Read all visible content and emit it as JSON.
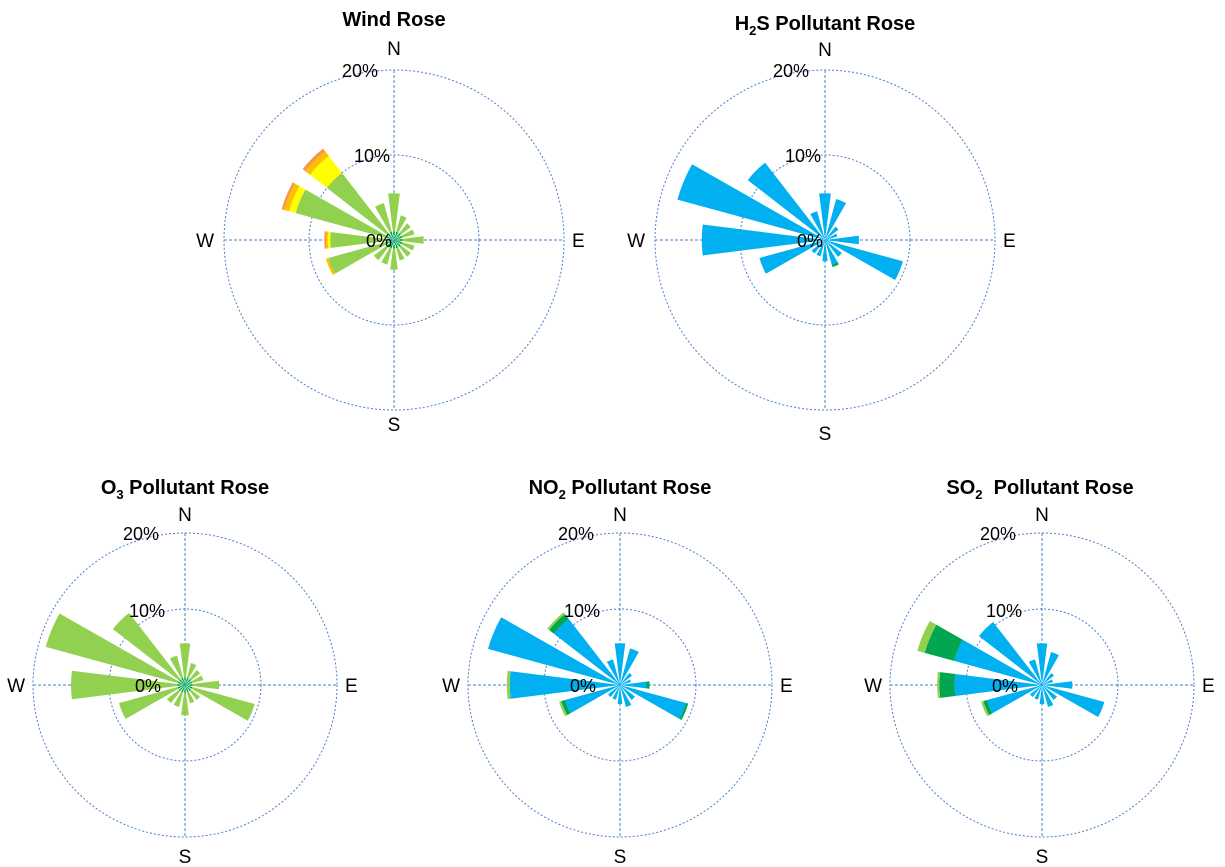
{
  "colors": {
    "calm_green": "#00a650",
    "light_green": "#92d050",
    "yellow": "#ffff00",
    "orange": "#ffc000",
    "dark_orange": "#f79646",
    "cyan": "#00b0f0",
    "grid": "#4a7fc9"
  },
  "chart_data": [
    {
      "type": "polar-bar",
      "title": "Wind Rose",
      "title_sub": "",
      "title_tail": "",
      "compass": {
        "n": "N",
        "e": "E",
        "s": "S",
        "w": "W"
      },
      "ring_labels": [
        "0%",
        "10%",
        "20%"
      ],
      "rmax": 20,
      "directions_deg": [
        0,
        22.5,
        45,
        67.5,
        90,
        112.5,
        135,
        157.5,
        180,
        202.5,
        225,
        247.5,
        270,
        292.5,
        315,
        337.5
      ],
      "series": [
        {
          "color": "#00a650",
          "values": [
            1,
            1,
            1,
            1,
            1,
            1,
            1,
            1,
            1,
            1,
            1,
            1,
            1,
            1,
            1,
            1
          ]
        },
        {
          "color": "#92d050",
          "values": [
            4.5,
            2,
            1.5,
            1.5,
            2.5,
            1.5,
            1.5,
            1.5,
            2.5,
            2,
            2,
            7,
            6.5,
            11,
            9,
            3.5
          ]
        },
        {
          "color": "#ffff00",
          "values": [
            0,
            0,
            0,
            0,
            0,
            0,
            0,
            0,
            0,
            0,
            0,
            0,
            0.3,
            0.8,
            2.5,
            0
          ]
        },
        {
          "color": "#ffc000",
          "values": [
            0,
            0,
            0,
            0,
            0,
            0,
            0,
            0,
            0,
            0,
            0,
            0.3,
            0.2,
            0.6,
            0.7,
            0
          ]
        },
        {
          "color": "#f79646",
          "values": [
            0,
            0,
            0,
            0,
            0,
            0,
            0,
            0,
            0,
            0,
            0,
            0,
            0.2,
            0.3,
            0.4,
            0
          ]
        }
      ]
    },
    {
      "type": "polar-bar",
      "title": "H",
      "title_sub": "2",
      "title_tail": "S Pollutant Rose",
      "compass": {
        "n": "N",
        "e": "E",
        "s": "S",
        "w": "W"
      },
      "ring_labels": [
        "0%",
        "10%",
        "20%"
      ],
      "rmax": 20,
      "directions_deg": [
        0,
        22.5,
        45,
        67.5,
        90,
        112.5,
        135,
        157.5,
        180,
        202.5,
        225,
        247.5,
        270,
        292.5,
        315,
        337.5
      ],
      "series": [
        {
          "color": "#00b0f0",
          "values": [
            5.5,
            5,
            2,
            1.5,
            4,
            9.5,
            2.5,
            3,
            2.5,
            2,
            2,
            8,
            14.5,
            18,
            11.5,
            3.5
          ]
        },
        {
          "color": "#00a650",
          "values": [
            0,
            0,
            0,
            0,
            0,
            0,
            0,
            0.3,
            0,
            0,
            0,
            0,
            0,
            0,
            0,
            0
          ]
        }
      ]
    },
    {
      "type": "polar-bar",
      "title": "O",
      "title_sub": "3",
      "title_tail": " Pollutant Rose",
      "compass": {
        "n": "N",
        "e": "E",
        "s": "S",
        "w": "W"
      },
      "ring_labels": [
        "0%",
        "10%",
        "20%"
      ],
      "rmax": 20,
      "directions_deg": [
        0,
        22.5,
        45,
        67.5,
        90,
        112.5,
        135,
        157.5,
        180,
        202.5,
        225,
        247.5,
        270,
        292.5,
        315,
        337.5
      ],
      "series": [
        {
          "color": "#00a650",
          "values": [
            1,
            1,
            1,
            1,
            1,
            1,
            1,
            1,
            1,
            1,
            1,
            1,
            1,
            1,
            1,
            1
          ]
        },
        {
          "color": "#92d050",
          "values": [
            4.5,
            2,
            1.5,
            1.5,
            3.5,
            8.5,
            1.5,
            1.5,
            3,
            2,
            2,
            8,
            14,
            18,
            11,
            3
          ]
        }
      ]
    },
    {
      "type": "polar-bar",
      "title": "NO",
      "title_sub": "2",
      "title_tail": " Pollutant Rose",
      "compass": {
        "n": "N",
        "e": "E",
        "s": "S",
        "w": "W"
      },
      "ring_labels": [
        "0%",
        "10%",
        "20%"
      ],
      "rmax": 20,
      "directions_deg": [
        0,
        22.5,
        45,
        67.5,
        90,
        112.5,
        135,
        157.5,
        180,
        202.5,
        225,
        247.5,
        270,
        292.5,
        315,
        337.5
      ],
      "series": [
        {
          "color": "#00b0f0",
          "values": [
            5.5,
            5,
            2,
            1.5,
            3.5,
            9,
            2.5,
            3,
            2.5,
            2,
            2,
            7.5,
            14.5,
            18,
            11,
            3.5
          ]
        },
        {
          "color": "#00a650",
          "values": [
            0,
            0,
            0,
            0,
            0.4,
            0.3,
            0,
            0,
            0,
            0,
            0,
            0.5,
            0,
            0,
            0.8,
            0
          ]
        },
        {
          "color": "#92d050",
          "values": [
            0,
            0,
            0,
            0,
            0,
            0,
            0,
            0,
            0,
            0,
            0,
            0.3,
            0.4,
            0,
            0.3,
            0
          ]
        }
      ]
    },
    {
      "type": "polar-bar",
      "title": "SO",
      "title_sub": "2",
      "title_tail": "  Pollutant Rose",
      "compass": {
        "n": "N",
        "e": "E",
        "s": "S",
        "w": "W"
      },
      "ring_labels": [
        "0%",
        "10%",
        "20%"
      ],
      "rmax": 20,
      "directions_deg": [
        0,
        22.5,
        45,
        67.5,
        90,
        112.5,
        135,
        157.5,
        180,
        202.5,
        225,
        247.5,
        270,
        292.5,
        315,
        337.5
      ],
      "series": [
        {
          "color": "#00b0f0",
          "values": [
            5.5,
            4.5,
            2,
            1.5,
            4,
            8.5,
            2.5,
            3,
            2.5,
            2,
            2,
            7.5,
            11.5,
            12,
            10.5,
            3.5
          ]
        },
        {
          "color": "#00a650",
          "values": [
            0,
            0,
            0,
            0,
            0,
            0,
            0,
            0,
            0,
            0,
            0,
            0.5,
            2,
            4,
            0,
            0
          ]
        },
        {
          "color": "#92d050",
          "values": [
            0,
            0,
            0,
            0,
            0,
            0,
            0,
            0,
            0,
            0,
            0,
            0.3,
            0.3,
            1,
            0,
            0
          ]
        }
      ]
    }
  ]
}
